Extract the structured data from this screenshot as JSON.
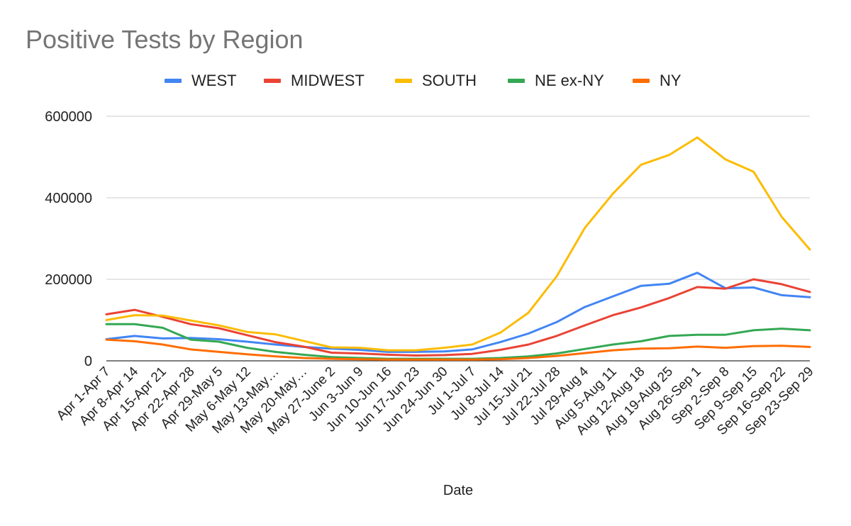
{
  "chart_data": {
    "type": "line",
    "title": "Positive Tests by Region",
    "xlabel": "Date",
    "ylabel": "",
    "ylim": [
      0,
      600000
    ],
    "yticks": [
      0,
      200000,
      400000,
      600000
    ],
    "ytick_labels": [
      "0",
      "200000",
      "400000",
      "600000"
    ],
    "grid": true,
    "legend_position": "top",
    "categories": [
      "Apr 1-Apr 7",
      "Apr 8-Apr 14",
      "Apr 15-Apr 21",
      "Apr 22-Apr 28",
      "Apr 29-May 5",
      "May 6-May 12",
      "May 13-May…",
      "May 20-May…",
      "May 27-June 2",
      "Jun 3-Jun 9",
      "Jun 10-Jun 16",
      "Jun 17-Jun 23",
      "Jun 24-Jun 30",
      "Jul 1-Jul 7",
      "Jul 8-Jul 14",
      "Jul 15-Jul 21",
      "Jul 22-Jul 28",
      "Jul 29-Aug 4",
      "Aug 5-Aug 11",
      "Aug 12-Aug 18",
      "Aug 19-Aug 25",
      "Aug 26-Sep 1",
      "Sep 2-Sep 8",
      "Sep 9-Sep 15",
      "Sep 16-Sep 22",
      "Sep 23-Sep 29"
    ],
    "series": [
      {
        "name": "WEST",
        "color": "#4285f4",
        "values": [
          53000,
          61000,
          55000,
          56000,
          53000,
          47000,
          40000,
          34000,
          30000,
          27000,
          22000,
          22000,
          23000,
          28000,
          46000,
          67000,
          95000,
          132000,
          158000,
          184000,
          189000,
          216000,
          178000,
          180000,
          161000,
          156000
        ]
      },
      {
        "name": "MIDWEST",
        "color": "#ea4335",
        "values": [
          114000,
          125000,
          108000,
          90000,
          80000,
          63000,
          46000,
          35000,
          20000,
          18000,
          15000,
          13000,
          14000,
          17000,
          27000,
          40000,
          61000,
          87000,
          112000,
          131000,
          154000,
          181000,
          177000,
          200000,
          188000,
          169000
        ]
      },
      {
        "name": "SOUTH",
        "color": "#fbbc04",
        "values": [
          100000,
          112000,
          111000,
          99000,
          87000,
          71000,
          65000,
          49000,
          33000,
          32000,
          26000,
          26000,
          32000,
          40000,
          69000,
          118000,
          207000,
          326000,
          410000,
          481000,
          505000,
          548000,
          494000,
          464000,
          353000,
          273000
        ]
      },
      {
        "name": "NE ex-NY",
        "color": "#34a853",
        "values": [
          90000,
          90000,
          81000,
          52000,
          47000,
          32000,
          22000,
          15000,
          9000,
          7000,
          5000,
          5000,
          5000,
          5000,
          7000,
          11000,
          18000,
          29000,
          40000,
          48000,
          61000,
          64000,
          64000,
          75000,
          79000,
          75000
        ]
      },
      {
        "name": "NY",
        "color": "#ff6d01",
        "values": [
          52000,
          48000,
          40000,
          28000,
          22000,
          16000,
          11000,
          7000,
          5000,
          4000,
          3000,
          3000,
          3000,
          3000,
          4000,
          7000,
          12000,
          19000,
          26000,
          30000,
          31000,
          35000,
          32000,
          36000,
          37000,
          34000
        ]
      }
    ]
  }
}
